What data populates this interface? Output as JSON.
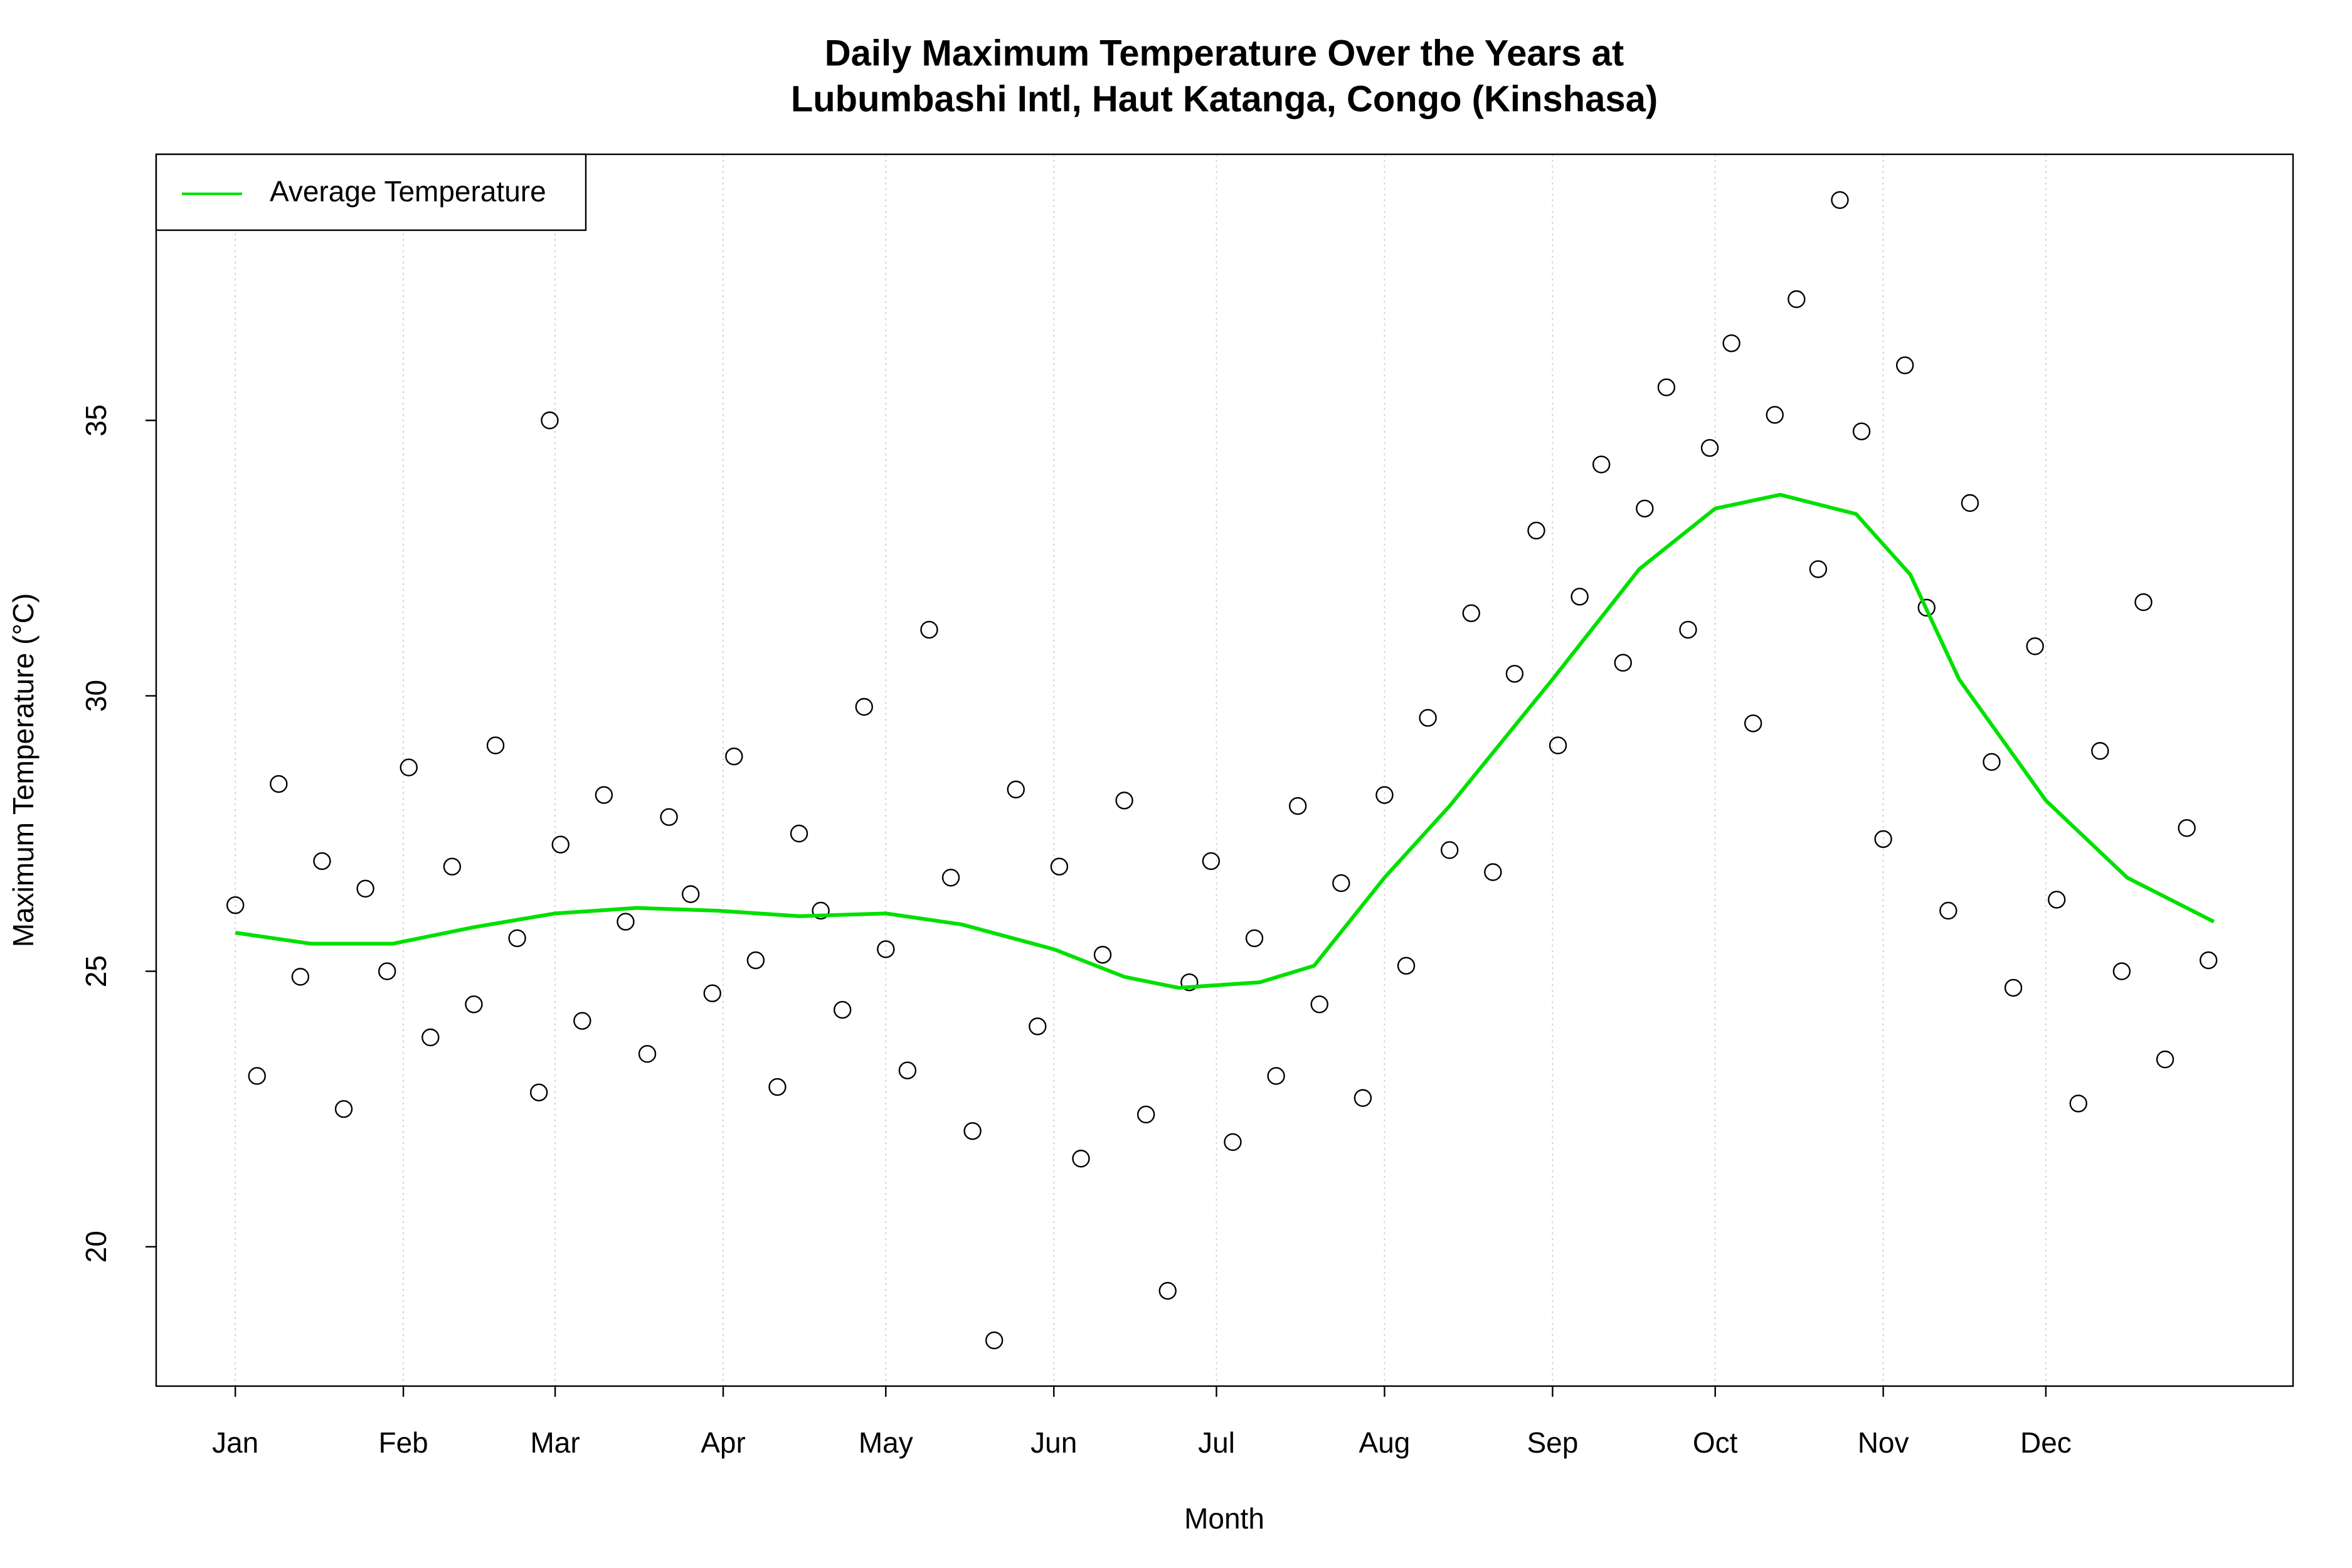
{
  "chart_data": {
    "type": "scatter",
    "title": [
      "Daily Maximum Temperature Over the Years at",
      "Lubumbashi Intl, Haut Katanga, Congo (Kinshasa)"
    ],
    "xlabel": "Month",
    "ylabel": "Maximum Temperature (°C)",
    "xlim": [
      -13.6,
      380.6
    ],
    "ylim": [
      17.47,
      39.83
    ],
    "xticks": [
      {
        "value": 1,
        "label": "Jan"
      },
      {
        "value": 32,
        "label": "Feb"
      },
      {
        "value": 60,
        "label": "Mar"
      },
      {
        "value": 91,
        "label": "Apr"
      },
      {
        "value": 121,
        "label": "May"
      },
      {
        "value": 152,
        "label": "Jun"
      },
      {
        "value": 182,
        "label": "Jul"
      },
      {
        "value": 213,
        "label": "Aug"
      },
      {
        "value": 244,
        "label": "Sep"
      },
      {
        "value": 274,
        "label": "Oct"
      },
      {
        "value": 305,
        "label": "Nov"
      },
      {
        "value": 335,
        "label": "Dec"
      }
    ],
    "yticks": [
      20,
      25,
      30,
      35
    ],
    "xgrid": true,
    "legend": "top-left",
    "color": "#000000",
    "x": [
      1,
      5,
      9,
      13,
      17,
      21,
      25,
      29,
      33,
      37,
      41,
      45,
      49,
      53,
      57,
      59,
      61,
      65,
      69,
      73,
      77,
      81,
      85,
      89,
      93,
      97,
      101,
      105,
      109,
      113,
      117,
      121,
      125,
      129,
      133,
      137,
      141,
      145,
      149,
      153,
      157,
      161,
      165,
      169,
      173,
      177,
      181,
      185,
      189,
      193,
      197,
      201,
      205,
      209,
      213,
      217,
      221,
      225,
      229,
      233,
      237,
      241,
      245,
      249,
      253,
      257,
      261,
      265,
      269,
      273,
      277,
      281,
      285,
      289,
      293,
      297,
      301,
      305,
      309,
      313,
      317,
      321,
      325,
      329,
      333,
      337,
      341,
      345,
      349,
      353,
      357,
      361,
      365
    ],
    "values": [
      26.2,
      23.1,
      28.4,
      24.9,
      27.0,
      22.5,
      26.5,
      25.0,
      28.7,
      23.8,
      26.9,
      24.4,
      29.1,
      25.6,
      22.8,
      35.0,
      27.3,
      24.1,
      28.2,
      25.9,
      23.5,
      27.8,
      26.4,
      24.6,
      28.9,
      25.2,
      22.9,
      27.5,
      26.1,
      24.3,
      29.8,
      25.4,
      23.2,
      31.2,
      26.7,
      22.1,
      18.3,
      28.3,
      24.0,
      26.9,
      21.6,
      25.3,
      28.1,
      22.4,
      19.2,
      24.8,
      27.0,
      21.9,
      25.6,
      23.1,
      28.0,
      24.4,
      26.6,
      22.7,
      28.2,
      25.1,
      29.6,
      27.2,
      31.5,
      26.8,
      30.4,
      33.0,
      29.1,
      31.8,
      34.2,
      30.6,
      33.4,
      35.6,
      31.2,
      34.5,
      36.4,
      29.5,
      35.1,
      37.2,
      32.3,
      39.0,
      34.8,
      27.4,
      36.0,
      31.6,
      26.1,
      33.5,
      28.8,
      24.7,
      30.9,
      26.3,
      22.6,
      29.0,
      25.0,
      31.7,
      23.4,
      27.6,
      25.2
    ],
    "series": [
      {
        "name": "Average Temperature",
        "color": "#00e000",
        "x": [
          1,
          15,
          30,
          45,
          60,
          75,
          90,
          105,
          121,
          135,
          152,
          165,
          175,
          190,
          200,
          213,
          225,
          244,
          260,
          274,
          286,
          300,
          310,
          319,
          335,
          350,
          366
        ],
        "values": [
          25.7,
          25.5,
          25.5,
          25.8,
          26.05,
          26.15,
          26.1,
          26.0,
          26.05,
          25.85,
          25.4,
          24.9,
          24.7,
          24.8,
          25.1,
          26.7,
          28.0,
          30.3,
          32.3,
          33.4,
          33.65,
          33.3,
          32.2,
          30.3,
          28.1,
          26.7,
          25.9
        ]
      }
    ]
  }
}
